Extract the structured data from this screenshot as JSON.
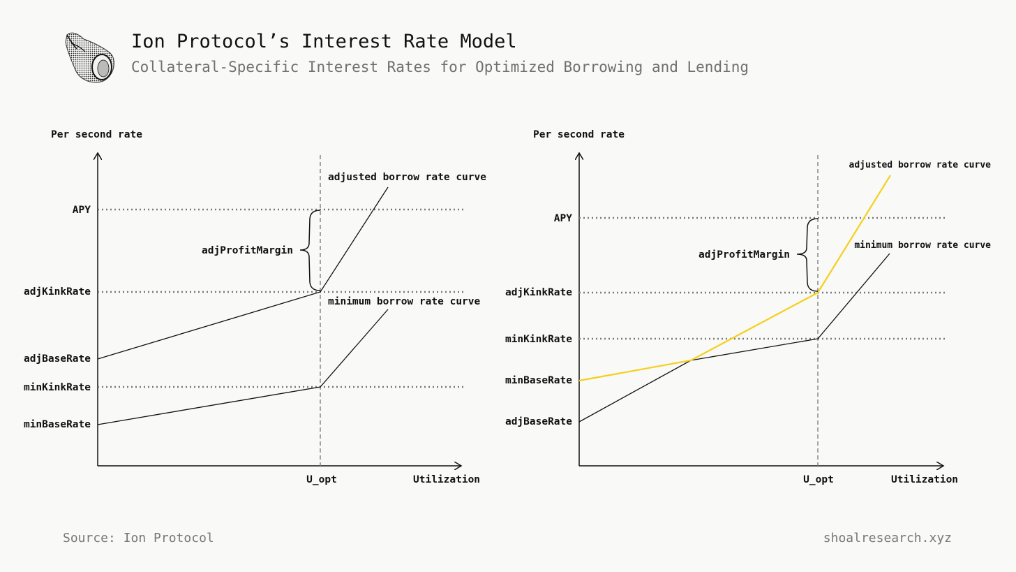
{
  "header": {
    "title": "Ion Protocol’s Interest Rate Model",
    "subtitle": "Collateral-Specific Interest Rates for Optimized Borrowing and Lending",
    "logo_icon": "seashell-icon"
  },
  "left_diagram": {
    "y_axis_label": "Per second rate",
    "x_axis_label": "Utilization",
    "x_tick": "U_opt",
    "levels": {
      "apy": "APY",
      "adj_kink_rate": "adjKinkRate",
      "adj_base_rate": "adjBaseRate",
      "min_kink_rate": "minKinkRate",
      "min_base_rate": "minBaseRate"
    },
    "bracket_label": "adjProfitMargin",
    "adjusted_curve_label": "adjusted borrow rate curve",
    "minimum_curve_label": "minimum borrow rate curve"
  },
  "right_diagram": {
    "y_axis_label": "Per second rate",
    "x_axis_label": "Utilization",
    "x_tick": "U_opt",
    "levels": {
      "apy": "APY",
      "adj_kink_rate": "adjKinkRate",
      "min_kink_rate": "minKinkRate",
      "min_base_rate": "minBaseRate",
      "adj_base_rate": "adjBaseRate"
    },
    "bracket_label": "adjProfitMargin",
    "adjusted_curve_label": "adjusted borrow rate curve",
    "minimum_curve_label": "minimum borrow rate curve",
    "adjusted_curve_color": "#f5cf1b"
  },
  "footer": {
    "source": "Source: Ion Protocol",
    "site": "shoalresearch.xyz"
  }
}
